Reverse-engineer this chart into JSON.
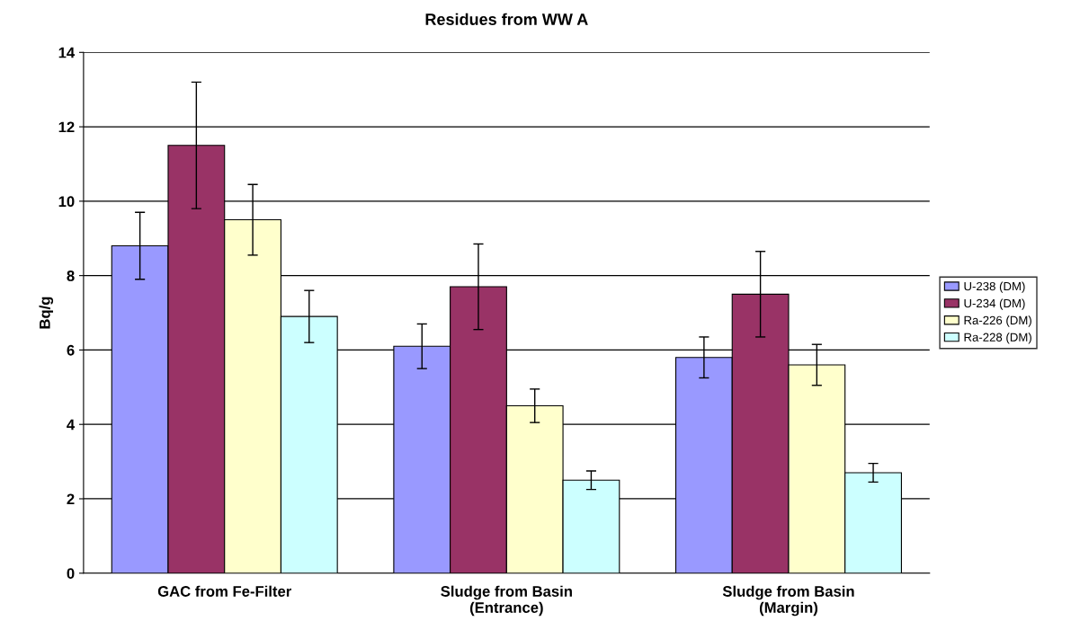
{
  "chart_data": {
    "type": "bar",
    "title": "Residues from WW A",
    "ylabel": "Bq/g",
    "categories": [
      "GAC from Fe-Filter",
      "Sludge from Basin\n(Entrance)",
      "Sludge from Basin\n(Margin)"
    ],
    "series": [
      {
        "name": "U-238 (DM)",
        "color": "#9999ff",
        "values": [
          8.8,
          6.1,
          5.8
        ],
        "errors": [
          0.9,
          0.6,
          0.55
        ]
      },
      {
        "name": "U-234 (DM)",
        "color": "#993366",
        "values": [
          11.5,
          7.7,
          7.5
        ],
        "errors": [
          1.7,
          1.15,
          1.15
        ]
      },
      {
        "name": "Ra-226 (DM)",
        "color": "#ffffcc",
        "values": [
          9.5,
          4.5,
          5.6
        ],
        "errors": [
          0.95,
          0.45,
          0.55
        ]
      },
      {
        "name": "Ra-228 (DM)",
        "color": "#ccffff",
        "values": [
          6.9,
          2.5,
          2.7
        ],
        "errors": [
          0.7,
          0.25,
          0.25
        ]
      }
    ],
    "ylim": [
      0,
      14
    ],
    "yticks": [
      0,
      2,
      4,
      6,
      8,
      10,
      12,
      14
    ],
    "grid": "y",
    "legend": "right"
  }
}
